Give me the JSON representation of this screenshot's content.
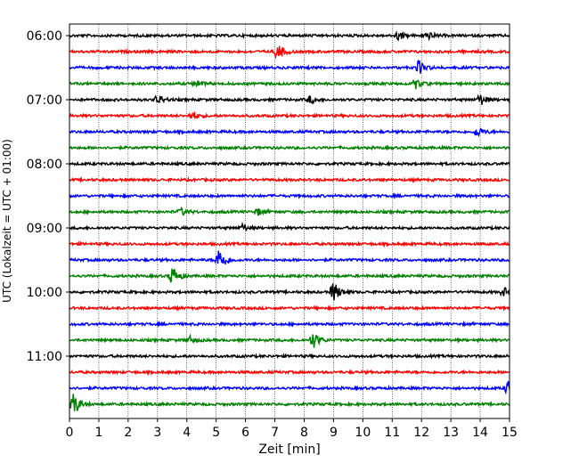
{
  "chart_data": {
    "type": "line",
    "title": "",
    "xlabel": "Zeit  [min]",
    "ylabel": "UTC (Lokalzeit = UTC + 01:00)",
    "xlim": [
      0,
      15
    ],
    "x_ticks": [
      "0",
      "1",
      "2",
      "3",
      "4",
      "5",
      "6",
      "7",
      "8",
      "9",
      "10",
      "11",
      "12",
      "13",
      "14",
      "15"
    ],
    "y_ticks": [
      "06:00",
      "07:00",
      "08:00",
      "09:00",
      "10:00",
      "11:00"
    ],
    "grid": "vertical dotted",
    "legend": "none",
    "trace_colors": [
      "#000000",
      "#ff0000",
      "#0000ff",
      "#008000"
    ],
    "traces_start": "06:00",
    "trace_interval_min": 15,
    "series": [
      {
        "start": "06:00",
        "color": "#000000",
        "events": [
          {
            "t": 11.2,
            "amp": 1.2
          },
          {
            "t": 12.2,
            "amp": 1.0
          }
        ]
      },
      {
        "start": "06:15",
        "color": "#ff0000",
        "events": [
          {
            "t": 7.1,
            "amp": 2.2
          }
        ]
      },
      {
        "start": "06:30",
        "color": "#0000ff",
        "events": [
          {
            "t": 11.9,
            "amp": 2.0
          }
        ]
      },
      {
        "start": "06:45",
        "color": "#008000",
        "events": [
          {
            "t": 4.3,
            "amp": 1.0
          },
          {
            "t": 11.8,
            "amp": 1.3
          }
        ]
      },
      {
        "start": "07:00",
        "color": "#000000",
        "events": [
          {
            "t": 3.0,
            "amp": 1.3
          },
          {
            "t": 8.2,
            "amp": 1.0
          },
          {
            "t": 14.0,
            "amp": 1.6
          }
        ]
      },
      {
        "start": "07:15",
        "color": "#ff0000",
        "events": [
          {
            "t": 4.2,
            "amp": 1.2
          }
        ]
      },
      {
        "start": "07:30",
        "color": "#0000ff",
        "events": [
          {
            "t": 13.9,
            "amp": 1.5
          }
        ]
      },
      {
        "start": "07:45",
        "color": "#008000",
        "events": []
      },
      {
        "start": "08:00",
        "color": "#000000",
        "events": []
      },
      {
        "start": "08:15",
        "color": "#ff0000",
        "events": []
      },
      {
        "start": "08:30",
        "color": "#0000ff",
        "events": []
      },
      {
        "start": "08:45",
        "color": "#008000",
        "events": [
          {
            "t": 3.8,
            "amp": 1.0
          },
          {
            "t": 6.4,
            "amp": 1.0
          }
        ]
      },
      {
        "start": "09:00",
        "color": "#000000",
        "events": [
          {
            "t": 5.9,
            "amp": 1.0
          }
        ]
      },
      {
        "start": "09:15",
        "color": "#ff0000",
        "events": []
      },
      {
        "start": "09:30",
        "color": "#0000ff",
        "events": [
          {
            "t": 5.1,
            "amp": 3.5
          }
        ]
      },
      {
        "start": "09:45",
        "color": "#008000",
        "events": [
          {
            "t": 3.5,
            "amp": 2.8
          }
        ]
      },
      {
        "start": "10:00",
        "color": "#000000",
        "events": [
          {
            "t": 9.0,
            "amp": 3.0
          },
          {
            "t": 14.8,
            "amp": 1.2
          }
        ]
      },
      {
        "start": "10:15",
        "color": "#ff0000",
        "events": []
      },
      {
        "start": "10:30",
        "color": "#0000ff",
        "events": []
      },
      {
        "start": "10:45",
        "color": "#008000",
        "events": [
          {
            "t": 4.1,
            "amp": 1.0
          },
          {
            "t": 8.3,
            "amp": 2.3
          }
        ]
      },
      {
        "start": "11:00",
        "color": "#000000",
        "events": []
      },
      {
        "start": "11:15",
        "color": "#ff0000",
        "events": []
      },
      {
        "start": "11:30",
        "color": "#0000ff",
        "events": [
          {
            "t": 14.95,
            "amp": 2.3
          }
        ]
      },
      {
        "start": "11:45",
        "color": "#008000",
        "events": [
          {
            "t": 0.15,
            "amp": 3.2
          }
        ]
      }
    ]
  }
}
